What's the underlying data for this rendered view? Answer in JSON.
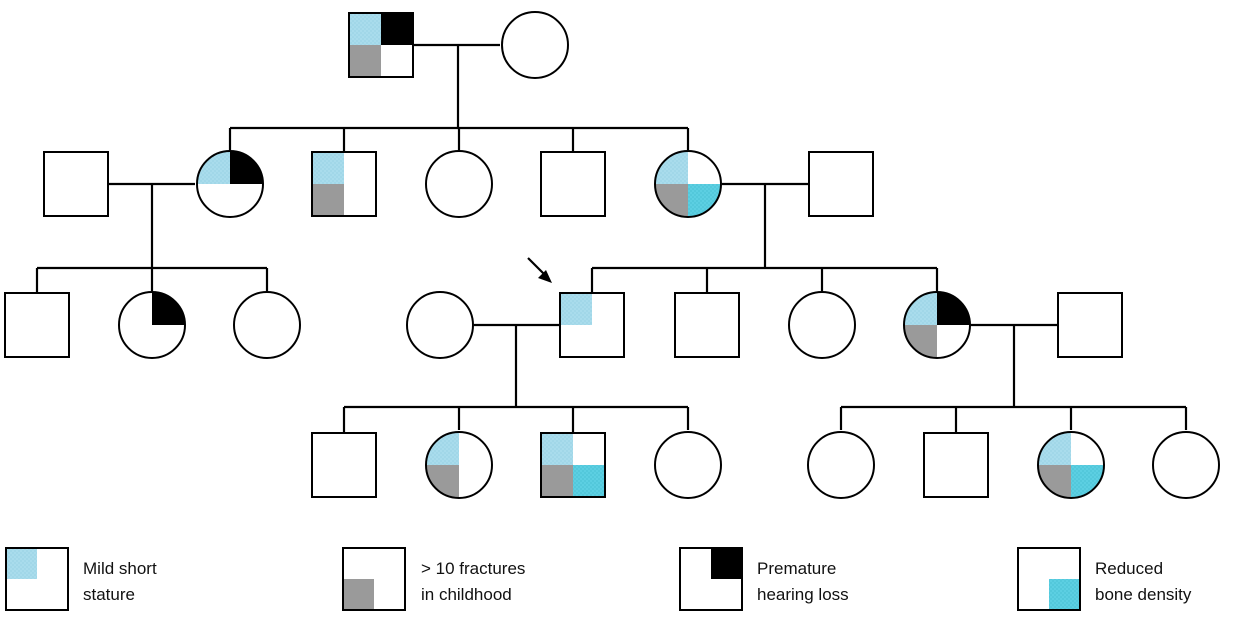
{
  "colors": {
    "short_stature": "#a9dcec",
    "fractures": "#9a9a9a",
    "hearing_loss": "#000000",
    "bone_density": "#5ccfe2",
    "line": "#000000",
    "background": "#ffffff"
  },
  "proband_marker": "arrow-icon",
  "legend": [
    {
      "trait": "short_stature",
      "quadrant": "top-left",
      "line1": "Mild short",
      "line2": "stature"
    },
    {
      "trait": "fractures",
      "quadrant": "bottom-left",
      "line1": "> 10 fractures",
      "line2": "in childhood"
    },
    {
      "trait": "hearing_loss",
      "quadrant": "top-right",
      "line1": "Premature",
      "line2": "hearing loss"
    },
    {
      "trait": "bone_density",
      "quadrant": "bottom-right",
      "line1": "Reduced",
      "line2": "bone density"
    }
  ],
  "individuals": [
    {
      "id": "I-1",
      "sex": "male",
      "traits": [
        "short_stature",
        "hearing_loss",
        "fractures"
      ]
    },
    {
      "id": "I-2",
      "sex": "female",
      "traits": []
    },
    {
      "id": "II-1",
      "sex": "male",
      "traits": []
    },
    {
      "id": "II-2",
      "sex": "female",
      "traits": [
        "short_stature",
        "hearing_loss"
      ]
    },
    {
      "id": "II-3",
      "sex": "male",
      "traits": [
        "short_stature",
        "fractures"
      ]
    },
    {
      "id": "II-4",
      "sex": "female",
      "traits": []
    },
    {
      "id": "II-5",
      "sex": "male",
      "traits": []
    },
    {
      "id": "II-6",
      "sex": "female",
      "traits": [
        "short_stature",
        "fractures",
        "bone_density"
      ]
    },
    {
      "id": "II-7",
      "sex": "male",
      "traits": []
    },
    {
      "id": "III-1",
      "sex": "male",
      "traits": []
    },
    {
      "id": "III-2",
      "sex": "female",
      "traits": [
        "hearing_loss"
      ]
    },
    {
      "id": "III-3",
      "sex": "female",
      "traits": []
    },
    {
      "id": "III-4",
      "sex": "female",
      "traits": []
    },
    {
      "id": "III-5",
      "sex": "male",
      "traits": [
        "short_stature"
      ],
      "proband": true
    },
    {
      "id": "III-6",
      "sex": "male",
      "traits": []
    },
    {
      "id": "III-7",
      "sex": "female",
      "traits": []
    },
    {
      "id": "III-8",
      "sex": "female",
      "traits": [
        "short_stature",
        "hearing_loss",
        "fractures"
      ]
    },
    {
      "id": "III-9",
      "sex": "male",
      "traits": []
    },
    {
      "id": "IV-1",
      "sex": "male",
      "traits": []
    },
    {
      "id": "IV-2",
      "sex": "female",
      "traits": [
        "short_stature",
        "fractures"
      ]
    },
    {
      "id": "IV-3",
      "sex": "male",
      "traits": [
        "short_stature",
        "fractures",
        "bone_density"
      ]
    },
    {
      "id": "IV-4",
      "sex": "female",
      "traits": []
    },
    {
      "id": "IV-5",
      "sex": "female",
      "traits": []
    },
    {
      "id": "IV-6",
      "sex": "male",
      "traits": []
    },
    {
      "id": "IV-7",
      "sex": "female",
      "traits": [
        "short_stature",
        "fractures",
        "bone_density"
      ]
    },
    {
      "id": "IV-8",
      "sex": "female",
      "traits": []
    }
  ]
}
